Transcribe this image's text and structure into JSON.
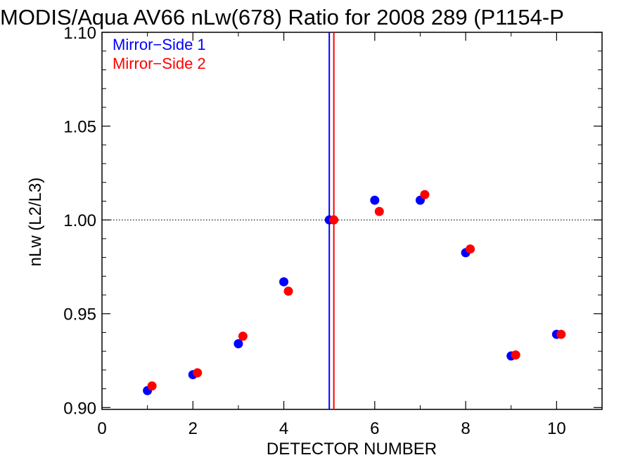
{
  "chart_data": {
    "type": "scatter",
    "title": "MODIS/Aqua AV66 nLw(678) Ratio for 2008 289 (P1154-P",
    "xlabel": "DETECTOR NUMBER",
    "ylabel": "nLw (L2/L3)",
    "xlim": [
      0,
      11
    ],
    "ylim": [
      0.899,
      1.1
    ],
    "x_ticks": [
      0,
      2,
      4,
      6,
      8,
      10
    ],
    "x_tick_labels": [
      "0",
      "2",
      "4",
      "6",
      "8",
      "10"
    ],
    "y_ticks": [
      0.9,
      0.95,
      1.0,
      1.05,
      1.1
    ],
    "y_tick_labels": [
      "0.90",
      "0.95",
      "1.00",
      "1.05",
      "1.10"
    ],
    "reference_line_y": 1.0,
    "legend_position": "top-left",
    "series": [
      {
        "name": "Mirror−Side 1",
        "color": "#0000ff",
        "x": [
          1,
          2,
          3,
          4,
          5,
          6,
          7,
          8,
          9,
          10
        ],
        "y": [
          0.909,
          0.9175,
          0.934,
          0.967,
          1.0,
          1.0105,
          1.0105,
          0.9825,
          0.9275,
          0.939
        ]
      },
      {
        "name": "Mirror−Side 2",
        "color": "#ff0000",
        "x": [
          1.1,
          2.1,
          3.1,
          4.1,
          5.1,
          6.1,
          7.1,
          8.1,
          9.1,
          10.1
        ],
        "y": [
          0.9115,
          0.9185,
          0.938,
          0.962,
          1.0,
          1.0045,
          1.0135,
          0.9845,
          0.928,
          0.939
        ]
      }
    ],
    "vertical_lines": [
      {
        "x": 5.0,
        "color": "#0000ff"
      },
      {
        "x": 5.1,
        "color": "#ff0000"
      }
    ]
  }
}
